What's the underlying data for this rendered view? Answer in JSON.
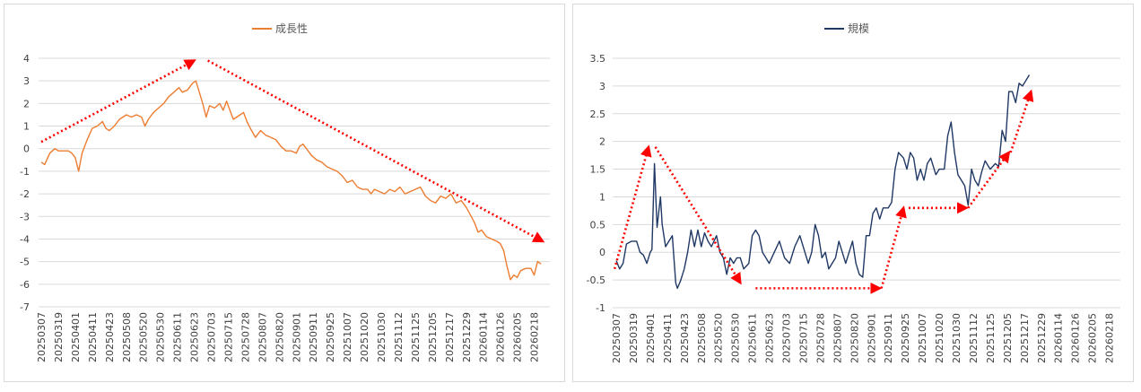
{
  "chart_data": [
    {
      "type": "line",
      "title": "",
      "legend": "top-center",
      "series": [
        {
          "name": "成長性",
          "color": "#ED7D31"
        }
      ],
      "ylim": [
        -7,
        4
      ],
      "yticks": [
        "4",
        "3",
        "2",
        "1",
        "0",
        "-1",
        "-2",
        "-3",
        "-4",
        "-5",
        "-6",
        "-7"
      ],
      "x_tick_labels": [
        "20250307",
        "20250319",
        "20250401",
        "20250411",
        "20250423",
        "20250508",
        "20250520",
        "20250530",
        "20250611",
        "20250623",
        "20250703",
        "20250715",
        "20250728",
        "20250807",
        "20250820",
        "20250901",
        "20250911",
        "20250925",
        "20251007",
        "20251020",
        "20251030",
        "20251112",
        "20251125",
        "20251205",
        "20251217",
        "20251229",
        "20260114",
        "20260126",
        "20260205",
        "20260218"
      ],
      "keypoints": [
        [
          0,
          -0.6
        ],
        [
          0.2,
          -0.7
        ],
        [
          0.5,
          -0.2
        ],
        [
          0.8,
          0.0
        ],
        [
          1.0,
          -0.1
        ],
        [
          1.3,
          -0.1
        ],
        [
          1.6,
          -0.1
        ],
        [
          1.8,
          -0.2
        ],
        [
          2.0,
          -0.4
        ],
        [
          2.2,
          -1.0
        ],
        [
          2.4,
          -0.2
        ],
        [
          2.7,
          0.4
        ],
        [
          3.0,
          0.9
        ],
        [
          3.3,
          1.0
        ],
        [
          3.6,
          1.2
        ],
        [
          3.8,
          0.9
        ],
        [
          4.0,
          0.8
        ],
        [
          4.3,
          1.0
        ],
        [
          4.6,
          1.3
        ],
        [
          5.0,
          1.5
        ],
        [
          5.3,
          1.4
        ],
        [
          5.6,
          1.5
        ],
        [
          5.9,
          1.4
        ],
        [
          6.1,
          1.0
        ],
        [
          6.3,
          1.3
        ],
        [
          6.6,
          1.6
        ],
        [
          6.9,
          1.8
        ],
        [
          7.2,
          2.0
        ],
        [
          7.5,
          2.3
        ],
        [
          7.8,
          2.5
        ],
        [
          8.1,
          2.7
        ],
        [
          8.3,
          2.5
        ],
        [
          8.6,
          2.6
        ],
        [
          8.9,
          2.9
        ],
        [
          9.1,
          3.0
        ],
        [
          9.3,
          2.5
        ],
        [
          9.5,
          2.0
        ],
        [
          9.7,
          1.4
        ],
        [
          9.9,
          1.9
        ],
        [
          10.2,
          1.8
        ],
        [
          10.5,
          2.0
        ],
        [
          10.7,
          1.7
        ],
        [
          10.9,
          2.1
        ],
        [
          11.1,
          1.7
        ],
        [
          11.3,
          1.3
        ],
        [
          11.5,
          1.4
        ],
        [
          11.7,
          1.5
        ],
        [
          11.9,
          1.6
        ],
        [
          12.1,
          1.2
        ],
        [
          12.3,
          0.9
        ],
        [
          12.6,
          0.5
        ],
        [
          12.9,
          0.8
        ],
        [
          13.2,
          0.6
        ],
        [
          13.5,
          0.5
        ],
        [
          13.8,
          0.4
        ],
        [
          14.1,
          0.1
        ],
        [
          14.4,
          -0.1
        ],
        [
          14.7,
          -0.1
        ],
        [
          15.0,
          -0.2
        ],
        [
          15.2,
          0.1
        ],
        [
          15.4,
          0.2
        ],
        [
          15.6,
          0.0
        ],
        [
          15.9,
          -0.3
        ],
        [
          16.2,
          -0.5
        ],
        [
          16.5,
          -0.6
        ],
        [
          16.8,
          -0.8
        ],
        [
          17.1,
          -0.9
        ],
        [
          17.4,
          -1.0
        ],
        [
          17.7,
          -1.2
        ],
        [
          18.0,
          -1.5
        ],
        [
          18.3,
          -1.4
        ],
        [
          18.6,
          -1.7
        ],
        [
          18.9,
          -1.8
        ],
        [
          19.2,
          -1.8
        ],
        [
          19.4,
          -2.0
        ],
        [
          19.6,
          -1.8
        ],
        [
          19.9,
          -1.9
        ],
        [
          20.2,
          -2.0
        ],
        [
          20.5,
          -1.8
        ],
        [
          20.8,
          -1.9
        ],
        [
          21.1,
          -1.7
        ],
        [
          21.4,
          -2.0
        ],
        [
          21.7,
          -1.9
        ],
        [
          22.0,
          -1.8
        ],
        [
          22.3,
          -1.7
        ],
        [
          22.6,
          -2.1
        ],
        [
          22.9,
          -2.3
        ],
        [
          23.2,
          -2.4
        ],
        [
          23.5,
          -2.1
        ],
        [
          23.8,
          -2.2
        ],
        [
          24.1,
          -2.0
        ],
        [
          24.4,
          -2.4
        ],
        [
          24.7,
          -2.3
        ],
        [
          25.0,
          -2.6
        ],
        [
          25.3,
          -3.0
        ],
        [
          25.5,
          -3.3
        ],
        [
          25.7,
          -3.7
        ],
        [
          25.9,
          -3.6
        ],
        [
          26.2,
          -3.9
        ],
        [
          26.5,
          -4.0
        ],
        [
          26.8,
          -4.1
        ],
        [
          27.0,
          -4.2
        ],
        [
          27.2,
          -4.5
        ],
        [
          27.4,
          -5.2
        ],
        [
          27.6,
          -5.8
        ],
        [
          27.8,
          -5.6
        ],
        [
          28.0,
          -5.7
        ],
        [
          28.2,
          -5.4
        ],
        [
          28.5,
          -5.3
        ],
        [
          28.8,
          -5.3
        ],
        [
          29.0,
          -5.6
        ],
        [
          29.2,
          -5.0
        ],
        [
          29.4,
          -5.1
        ]
      ],
      "annotations": [
        {
          "type": "arrow",
          "from": [
            0,
            0.3
          ],
          "to": [
            9.0,
            3.9
          ]
        },
        {
          "type": "arrow",
          "from": [
            9.8,
            3.9
          ],
          "to": [
            29.5,
            -4.1
          ]
        }
      ]
    },
    {
      "type": "line",
      "title": "",
      "legend": "top-center",
      "series": [
        {
          "name": "規模",
          "color": "#203864"
        }
      ],
      "ylim": [
        -1,
        3.5
      ],
      "yticks": [
        "3.5",
        "3",
        "2.5",
        "2",
        "1.5",
        "1",
        "0.5",
        "0",
        "-0.5",
        "-1"
      ],
      "x_tick_labels": [
        "20250307",
        "20250319",
        "20250401",
        "20250411",
        "20250423",
        "20250508",
        "20250520",
        "20250530",
        "20250611",
        "20250623",
        "20250703",
        "20250715",
        "20250728",
        "20250807",
        "20250820",
        "20250901",
        "20250911",
        "20250925",
        "20251007",
        "20251020",
        "20251030",
        "20251112",
        "20251125",
        "20251205",
        "20251217",
        "20251229",
        "20260114",
        "20260126",
        "20260205",
        "20260218"
      ],
      "keypoints": [
        [
          0,
          -0.15
        ],
        [
          0.2,
          -0.3
        ],
        [
          0.4,
          -0.2
        ],
        [
          0.6,
          0.15
        ],
        [
          0.9,
          0.2
        ],
        [
          1.2,
          0.2
        ],
        [
          1.4,
          0.0
        ],
        [
          1.6,
          -0.05
        ],
        [
          1.8,
          -0.2
        ],
        [
          2.0,
          0.0
        ],
        [
          2.1,
          0.05
        ],
        [
          2.25,
          1.6
        ],
        [
          2.4,
          0.45
        ],
        [
          2.6,
          1.0
        ],
        [
          2.7,
          0.5
        ],
        [
          2.9,
          0.1
        ],
        [
          3.1,
          0.2
        ],
        [
          3.3,
          0.3
        ],
        [
          3.5,
          -0.55
        ],
        [
          3.6,
          -0.65
        ],
        [
          3.8,
          -0.5
        ],
        [
          4.0,
          -0.3
        ],
        [
          4.2,
          0.0
        ],
        [
          4.4,
          0.4
        ],
        [
          4.6,
          0.1
        ],
        [
          4.8,
          0.4
        ],
        [
          5.0,
          0.1
        ],
        [
          5.2,
          0.35
        ],
        [
          5.4,
          0.2
        ],
        [
          5.6,
          0.1
        ],
        [
          5.9,
          0.3
        ],
        [
          6.1,
          0.0
        ],
        [
          6.3,
          -0.1
        ],
        [
          6.5,
          -0.4
        ],
        [
          6.7,
          -0.1
        ],
        [
          6.9,
          -0.2
        ],
        [
          7.1,
          -0.1
        ],
        [
          7.3,
          -0.1
        ],
        [
          7.5,
          -0.3
        ],
        [
          7.8,
          -0.2
        ],
        [
          8.0,
          0.3
        ],
        [
          8.2,
          0.4
        ],
        [
          8.4,
          0.3
        ],
        [
          8.6,
          0.0
        ],
        [
          8.8,
          -0.1
        ],
        [
          9.0,
          -0.2
        ],
        [
          9.3,
          0.0
        ],
        [
          9.6,
          0.2
        ],
        [
          9.9,
          -0.1
        ],
        [
          10.2,
          -0.2
        ],
        [
          10.5,
          0.1
        ],
        [
          10.8,
          0.3
        ],
        [
          11.1,
          0.0
        ],
        [
          11.3,
          -0.2
        ],
        [
          11.5,
          0.0
        ],
        [
          11.7,
          0.5
        ],
        [
          11.9,
          0.3
        ],
        [
          12.1,
          -0.1
        ],
        [
          12.3,
          0.0
        ],
        [
          12.5,
          -0.3
        ],
        [
          12.7,
          -0.2
        ],
        [
          12.9,
          -0.1
        ],
        [
          13.1,
          0.2
        ],
        [
          13.3,
          0.0
        ],
        [
          13.5,
          -0.2
        ],
        [
          13.7,
          0.0
        ],
        [
          13.9,
          0.2
        ],
        [
          14.1,
          -0.2
        ],
        [
          14.3,
          -0.4
        ],
        [
          14.5,
          -0.45
        ],
        [
          14.7,
          0.3
        ],
        [
          14.9,
          0.3
        ],
        [
          15.1,
          0.7
        ],
        [
          15.3,
          0.8
        ],
        [
          15.5,
          0.6
        ],
        [
          15.7,
          0.8
        ],
        [
          16.0,
          0.8
        ],
        [
          16.2,
          0.9
        ],
        [
          16.4,
          1.5
        ],
        [
          16.6,
          1.8
        ],
        [
          16.9,
          1.7
        ],
        [
          17.1,
          1.5
        ],
        [
          17.3,
          1.8
        ],
        [
          17.5,
          1.7
        ],
        [
          17.7,
          1.3
        ],
        [
          17.9,
          1.5
        ],
        [
          18.1,
          1.3
        ],
        [
          18.3,
          1.6
        ],
        [
          18.5,
          1.7
        ],
        [
          18.8,
          1.4
        ],
        [
          19.0,
          1.5
        ],
        [
          19.3,
          1.5
        ],
        [
          19.5,
          2.1
        ],
        [
          19.7,
          2.35
        ],
        [
          19.9,
          1.8
        ],
        [
          20.1,
          1.4
        ],
        [
          20.3,
          1.3
        ],
        [
          20.5,
          1.2
        ],
        [
          20.7,
          0.85
        ],
        [
          20.9,
          1.5
        ],
        [
          21.1,
          1.3
        ],
        [
          21.3,
          1.2
        ],
        [
          21.5,
          1.45
        ],
        [
          21.7,
          1.65
        ],
        [
          22.0,
          1.5
        ],
        [
          22.3,
          1.6
        ],
        [
          22.5,
          1.55
        ],
        [
          22.7,
          2.2
        ],
        [
          22.9,
          2.0
        ],
        [
          23.1,
          2.9
        ],
        [
          23.3,
          2.9
        ],
        [
          23.5,
          2.7
        ],
        [
          23.7,
          3.05
        ],
        [
          23.9,
          3.0
        ],
        [
          24.1,
          3.1
        ],
        [
          24.3,
          3.2
        ]
      ],
      "annotations": [
        {
          "type": "arrow",
          "from": [
            -0.1,
            -0.3
          ],
          "to": [
            1.9,
            1.9
          ]
        },
        {
          "type": "arrow",
          "from": [
            2.3,
            1.9
          ],
          "to": [
            7.3,
            -0.55
          ]
        },
        {
          "type": "arrow",
          "from": [
            8.2,
            -0.65
          ],
          "to": [
            15.5,
            -0.65
          ]
        },
        {
          "type": "arrow",
          "from": [
            15.6,
            -0.65
          ],
          "to": [
            16.9,
            0.8
          ]
        },
        {
          "type": "arrow",
          "from": [
            17.2,
            0.8
          ],
          "to": [
            20.6,
            0.8
          ]
        },
        {
          "type": "arrow",
          "from": [
            20.7,
            0.8
          ],
          "to": [
            23.1,
            1.8
          ]
        },
        {
          "type": "arrow",
          "from": [
            23.2,
            1.8
          ],
          "to": [
            24.4,
            2.9
          ]
        }
      ]
    }
  ]
}
